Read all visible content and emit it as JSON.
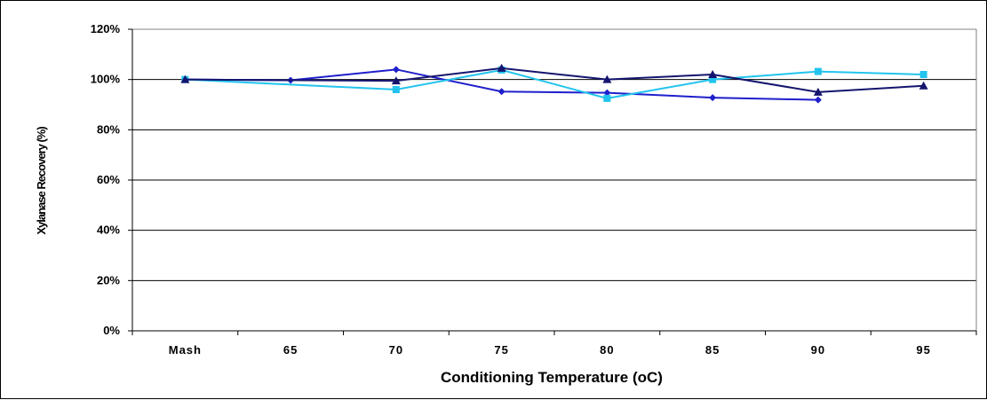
{
  "chart_data": {
    "type": "line",
    "title": "",
    "xlabel": "Conditioning Temperature (oC)",
    "ylabel": "Xylanase Recovery (%)",
    "categories": [
      "Mash",
      "65",
      "70",
      "75",
      "80",
      "85",
      "90",
      "95"
    ],
    "ylim": [
      0,
      120
    ],
    "yticks": [
      "0%",
      "20%",
      "40%",
      "60%",
      "80%",
      "100%",
      "120%"
    ],
    "ytick_values": [
      0,
      20,
      40,
      60,
      80,
      100,
      120
    ],
    "grid": "horizontal",
    "legend": "none",
    "series": [
      {
        "values": [
          100,
          99.7,
          104,
          95.2,
          94.7,
          92.8,
          91.9,
          null
        ],
        "color": "#1f1fcc",
        "marker": "diamond"
      },
      {
        "values": [
          100,
          null,
          96,
          103.8,
          92.5,
          100,
          103.2,
          102
        ],
        "color": "#22c4ee",
        "marker": "square"
      },
      {
        "values": [
          100,
          null,
          99.5,
          104.5,
          100,
          102,
          95,
          97.5
        ],
        "color": "#14146e",
        "marker": "triangle"
      }
    ]
  }
}
